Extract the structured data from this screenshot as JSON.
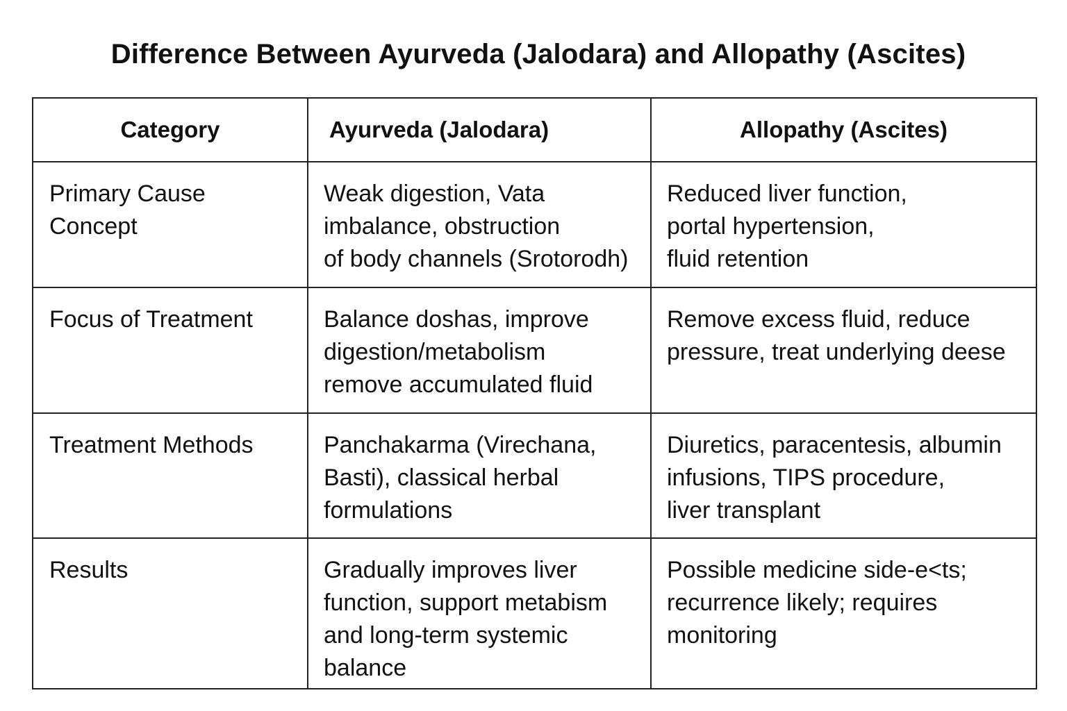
{
  "title": "Difference Between Ayurveda (Jalodara) and Allopathy (Ascites)",
  "table": {
    "headers": [
      "Category",
      "Ayurveda (Jalodara)",
      "Allopathy (Ascites)"
    ],
    "rows": [
      {
        "category": [
          "Primary Cause",
          "Concept"
        ],
        "ayurveda": [
          "Weak digestion, Vata",
          "imbalance, obstruction",
          "of body channels (Srotorodh)"
        ],
        "allopathy": [
          "Reduced liver function,",
          "portal hypertension,",
          "fluid retention"
        ]
      },
      {
        "category": [
          "Focus of Treatment"
        ],
        "ayurveda": [
          "Balance doshas, improve",
          "digestion/metabolism",
          "remove accumulated fluid"
        ],
        "allopathy": [
          "Remove excess fluid, reduce",
          "pressure, treat underlying deese"
        ]
      },
      {
        "category": [
          "Treatment Methods"
        ],
        "ayurveda": [
          "Panchakarma (Virechana,",
          "Basti), classical herbal",
          "formulations"
        ],
        "allopathy": [
          "Diuretics, paracentesis, albumin",
          "infusions, TIPS procedure,",
          "liver transplant"
        ]
      },
      {
        "category": [
          "Results"
        ],
        "ayurveda": [
          "Gradually improves liver",
          "function, support metabism",
          "and long-term systemic",
          "balance"
        ],
        "allopathy": [
          "Possible medicine side-e<ts;",
          "recurrence likely; requires",
          "monitoring"
        ]
      }
    ]
  }
}
